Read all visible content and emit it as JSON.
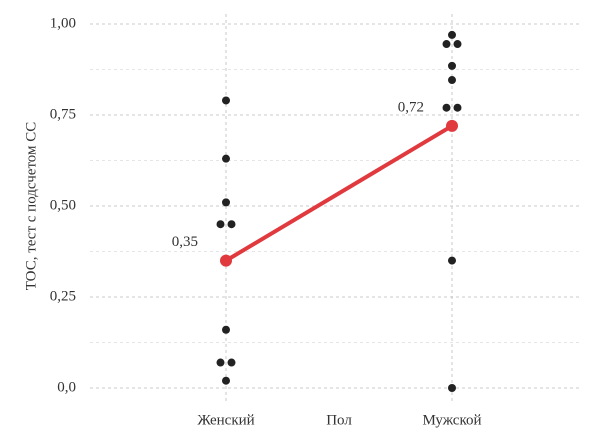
{
  "chart_data": {
    "type": "strip",
    "x_label": "Пол",
    "y_label": "ТОС, тест с подсчетом СС",
    "categories": [
      "Женский",
      "Мужской"
    ],
    "values_by_category": [
      [
        0.79,
        0.63,
        0.51,
        0.45,
        0.45,
        0.16,
        0.07,
        0.07,
        0.02
      ],
      [
        0.97,
        0.945,
        0.945,
        0.885,
        0.846,
        0.77,
        0.77,
        0.35,
        0.0
      ]
    ],
    "means": [
      0.35,
      0.72
    ],
    "mean_labels": [
      "0,35",
      "0,72"
    ],
    "point_color": "#222222",
    "mean_color": "#e0393e",
    "ylim": [
      0,
      1
    ],
    "yticks": [
      {
        "value": 0,
        "label": "0,0"
      },
      {
        "value": 0.25,
        "label": "0,25"
      },
      {
        "value": 0.5,
        "label": "0,50"
      },
      {
        "value": 0.75,
        "label": "0,75"
      },
      {
        "value": 1,
        "label": "1,00"
      }
    ],
    "grid": true
  }
}
